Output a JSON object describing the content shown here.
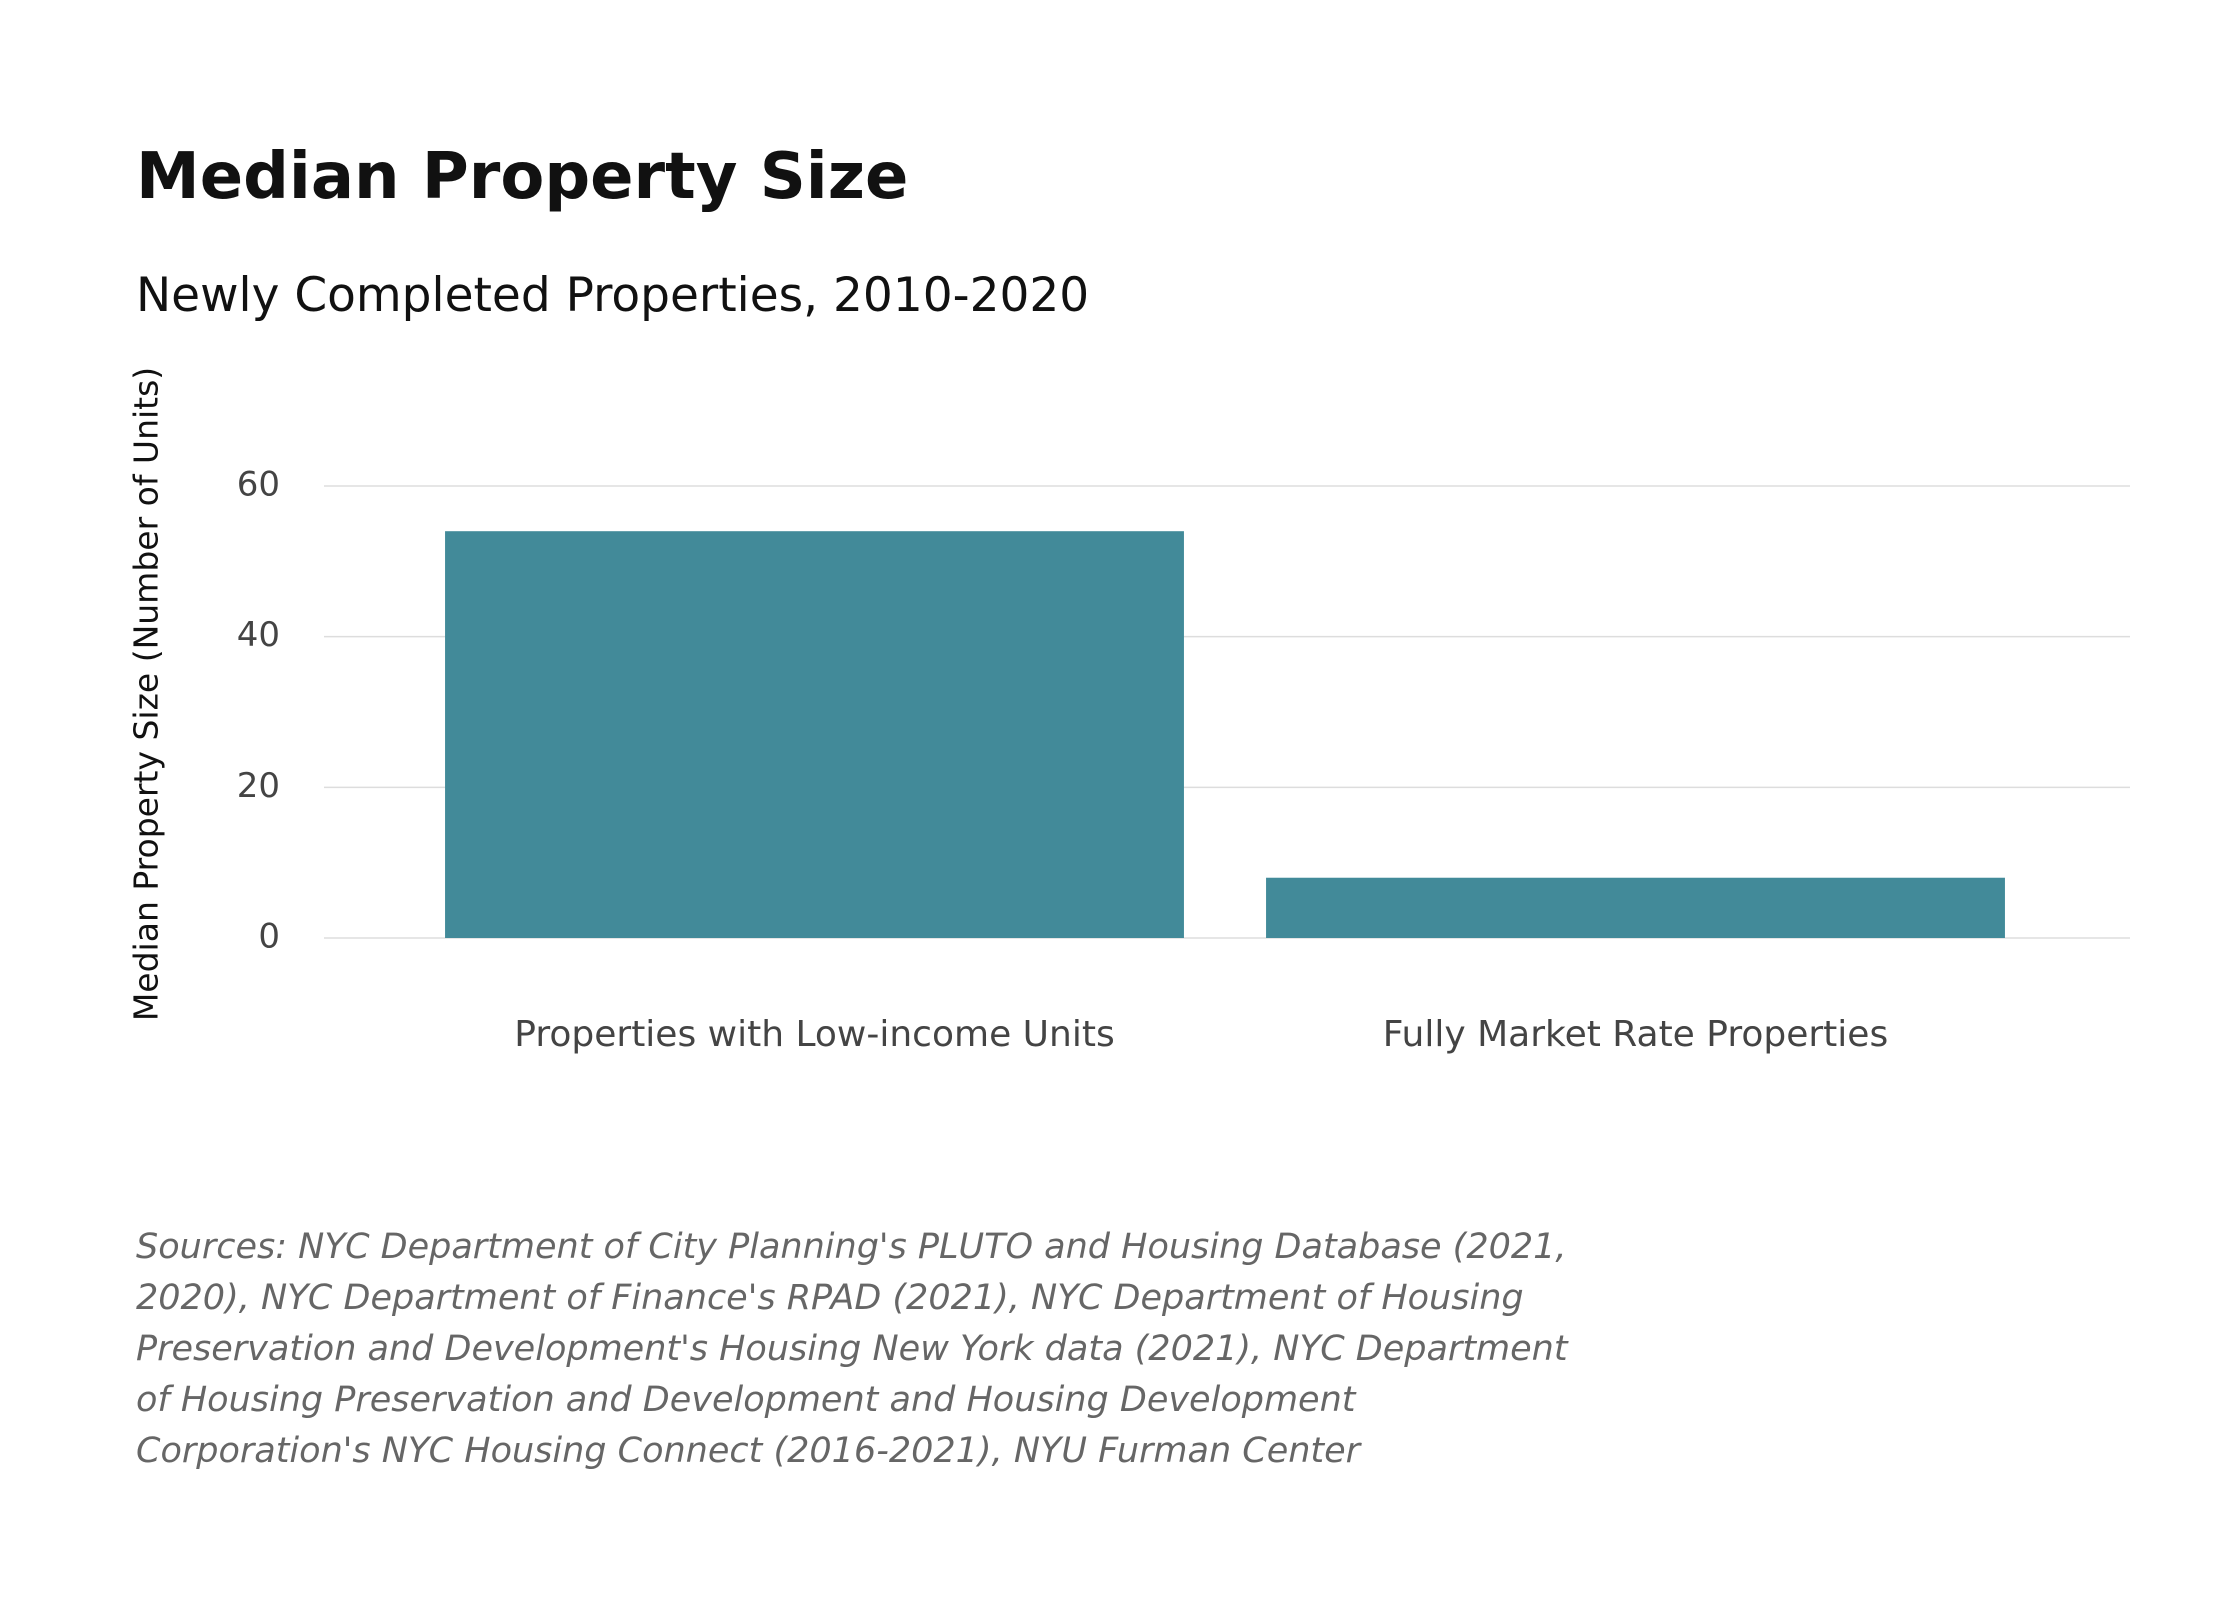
{
  "chart_data": {
    "type": "bar",
    "title": "Median Property Size",
    "subtitle": "Newly Completed Properties, 2010-2020",
    "y_label": "Median Property Size (Number of Units)",
    "categories": [
      "Properties with Low-income Units",
      "Fully Market Rate Properties"
    ],
    "values": [
      54,
      8
    ],
    "color": "#428a99",
    "ylim": [
      0,
      60
    ],
    "yticks": [
      0,
      20,
      40,
      60
    ],
    "grid": true,
    "source": "Sources: NYC Department of City Planning's PLUTO and Housing Database (2021, 2020), NYC Department of Finance's RPAD (2021), NYC Department of Housing Preservation and Development's Housing New York data (2021), NYC Department of Housing Preservation and Development and Housing Development Corporation's NYC Housing Connect (2016-2021), NYU Furman Center"
  }
}
